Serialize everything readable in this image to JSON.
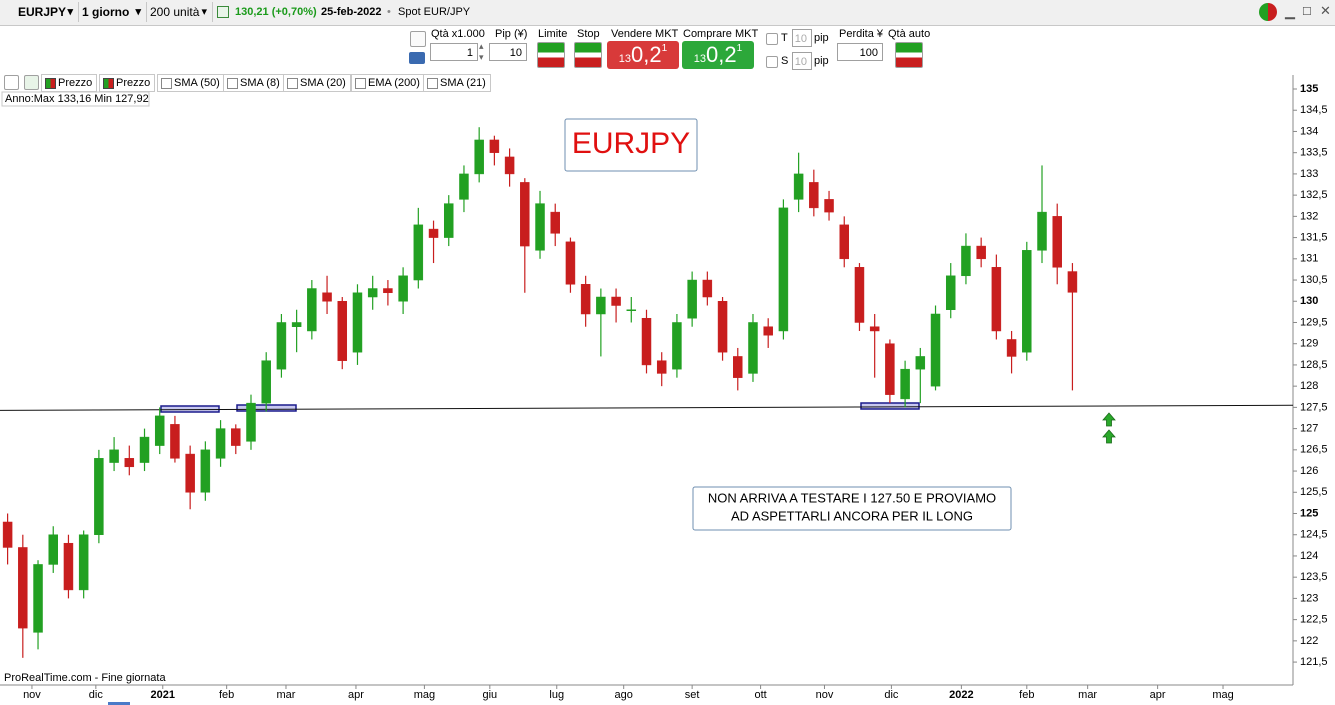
{
  "toolbar": {
    "instrument": "EURJPY",
    "timeframe": "1 giorno",
    "units": "200 unità",
    "change": "130,21 (+0,70%)",
    "date": "25-feb-2022",
    "market": "Spot EUR/JPY"
  },
  "order_bar": {
    "qty_label": "Qtà x1.000",
    "qty_value": "1",
    "pip_label": "Pip (¥)",
    "pip_value": "10",
    "limit": "Limite",
    "stop": "Stop",
    "sell_label": "Vendere MKT",
    "buy_label": "Comprare MKT",
    "sell_price": {
      "prefix": "13",
      "main": "0,2",
      "sup": "1"
    },
    "buy_price": {
      "prefix": "13",
      "main": "0,2",
      "sup": "1"
    },
    "t_label": "T",
    "t_value": "10",
    "t_unit": "pip",
    "s_label": "S",
    "s_value": "10",
    "s_unit": "pip",
    "loss_label": "Perdita ¥",
    "loss_value": "100",
    "auto_qty": "Qtà auto"
  },
  "indicators": [
    "Prezzo",
    "Prezzo",
    "SMA (50)",
    "SMA (8)",
    "SMA (20)",
    "EMA (200)",
    "SMA (21)"
  ],
  "year_range": "Anno:Max 133,16 Min 127,92",
  "footer": "ProRealTime.com - Fine giornata",
  "chart_data": {
    "type": "candlestick",
    "title": "EURJPY",
    "annotation": [
      "NON ARRIVA A TESTARE I 127.50 E PROVIAMO",
      "AD ASPETTARLI ANCORA PER IL LONG"
    ],
    "up_color": "#22a022",
    "down_color": "#c81e1e",
    "support_line": {
      "start": 127.43,
      "end": 127.55
    },
    "xlim": [
      -0.5,
      84.5
    ],
    "xticks": [
      {
        "value": 1.6,
        "label": "nov"
      },
      {
        "value": 5.8,
        "label": "dic"
      },
      {
        "value": 10.2,
        "label": "2021"
      },
      {
        "value": 14.4,
        "label": "feb"
      },
      {
        "value": 18.3,
        "label": "mar"
      },
      {
        "value": 22.9,
        "label": "apr"
      },
      {
        "value": 27.4,
        "label": "mag"
      },
      {
        "value": 31.7,
        "label": "giu"
      },
      {
        "value": 36.1,
        "label": "lug"
      },
      {
        "value": 40.5,
        "label": "ago"
      },
      {
        "value": 45.0,
        "label": "set"
      },
      {
        "value": 49.5,
        "label": "ott"
      },
      {
        "value": 53.7,
        "label": "nov"
      },
      {
        "value": 58.1,
        "label": "dic"
      },
      {
        "value": 62.7,
        "label": "2022"
      },
      {
        "value": 67.0,
        "label": "feb"
      },
      {
        "value": 71.0,
        "label": "mar"
      },
      {
        "value": 75.6,
        "label": "apr"
      },
      {
        "value": 79.9,
        "label": "mag"
      }
    ],
    "ylim": [
      120.96,
      135.33
    ],
    "yticks": [
      {
        "value": 121.5,
        "label": "121,5"
      },
      122,
      {
        "value": 122.5,
        "label": "122,5"
      },
      123,
      {
        "value": 123.5,
        "label": "123,5"
      },
      124,
      {
        "value": 124.5,
        "label": "124,5"
      },
      125,
      {
        "value": 125.5,
        "label": "125,5"
      },
      126,
      {
        "value": 126.5,
        "label": "126,5"
      },
      127,
      {
        "value": 127.5,
        "label": "127,5"
      },
      128,
      {
        "value": 128.5,
        "label": "128,5"
      },
      129,
      {
        "value": 129.5,
        "label": "129,5"
      },
      130,
      {
        "value": 130.5,
        "label": "130,5"
      },
      131,
      {
        "value": 131.5,
        "label": "131,5"
      },
      132,
      {
        "value": 132.5,
        "label": "132,5"
      },
      133,
      {
        "value": 133.5,
        "label": "133,5"
      },
      134,
      {
        "value": 134.5,
        "label": "134,5"
      },
      135
    ],
    "open": [
      124.8,
      124.2,
      122.2,
      123.8,
      124.3,
      123.2,
      124.5,
      126.2,
      126.3,
      126.2,
      126.6,
      127.1,
      126.4,
      125.5,
      126.3,
      127,
      126.7,
      127.6,
      128.4,
      129.4,
      129.3,
      130.2,
      130,
      128.8,
      130.1,
      130.3,
      130,
      130.5,
      131.7,
      131.5,
      132.4,
      133,
      133.8,
      133.4,
      132.8,
      131.2,
      132.1,
      131.4,
      130.4,
      129.7,
      130.1,
      129.8,
      129.6,
      128.6,
      128.4,
      129.6,
      130.5,
      130,
      128.7,
      128.3,
      129.4,
      129.3,
      132.4,
      132.8,
      132.4,
      131.8,
      130.8,
      129.4,
      129,
      127.7,
      128.4,
      128,
      129.8,
      130.6,
      131.3,
      130.8,
      129.1,
      128.8,
      131.2,
      132,
      130.7
    ],
    "high": [
      125,
      124.5,
      123.9,
      124.7,
      124.5,
      124.6,
      126.5,
      126.8,
      126.6,
      127,
      127.5,
      127.3,
      126.6,
      126.7,
      127.2,
      127.1,
      127.8,
      128.8,
      129.7,
      129.8,
      130.5,
      130.6,
      130.1,
      130.4,
      130.6,
      130.5,
      130.8,
      132.2,
      131.9,
      132.5,
      133.2,
      134.1,
      133.9,
      133.6,
      132.9,
      132.6,
      132.3,
      131.5,
      130.6,
      130.3,
      130.3,
      130.1,
      129.8,
      128.8,
      129.7,
      130.7,
      130.7,
      130.1,
      128.9,
      129.7,
      129.6,
      132.4,
      133.5,
      133.1,
      132.6,
      132,
      130.9,
      129.7,
      129.1,
      128.6,
      128.9,
      129.9,
      130.9,
      131.6,
      131.5,
      131.1,
      129.3,
      131.4,
      133.2,
      132.3,
      130.9
    ],
    "low": [
      123.8,
      121.6,
      121.8,
      123.6,
      123,
      123,
      124.3,
      126,
      125.9,
      126,
      126.4,
      126.2,
      125.1,
      125.3,
      126.1,
      126.4,
      126.5,
      127.4,
      128.2,
      128.8,
      129.1,
      129.7,
      128.4,
      128.5,
      129.8,
      129.9,
      129.7,
      130.3,
      130.9,
      131.3,
      132.1,
      132.8,
      133.2,
      132.7,
      130.2,
      131,
      131.3,
      130.2,
      129.4,
      128.7,
      129.5,
      129.5,
      128.3,
      128,
      128.2,
      129.4,
      129.9,
      128.6,
      127.9,
      128.1,
      128.9,
      129.1,
      132.1,
      132,
      131.9,
      130.8,
      129.3,
      128.2,
      127.6,
      127.5,
      127.6,
      127.9,
      129.6,
      130.4,
      130.8,
      129.1,
      128.3,
      128.6,
      130.9,
      130.4,
      127.9
    ],
    "close": [
      124.2,
      122.3,
      123.8,
      124.5,
      123.2,
      124.5,
      126.3,
      126.5,
      126.1,
      126.8,
      127.3,
      126.3,
      125.5,
      126.5,
      127,
      126.6,
      127.6,
      128.6,
      129.5,
      129.5,
      130.3,
      130,
      128.6,
      130.2,
      130.3,
      130.2,
      130.6,
      131.8,
      131.5,
      132.3,
      133,
      133.8,
      133.5,
      133,
      131.3,
      132.3,
      131.6,
      130.4,
      129.7,
      130.1,
      129.9,
      129.8,
      128.5,
      128.3,
      129.5,
      130.5,
      130.1,
      128.8,
      128.2,
      129.5,
      129.2,
      132.2,
      133,
      132.2,
      132.1,
      131,
      129.5,
      129.3,
      127.8,
      128.4,
      128.7,
      129.7,
      130.6,
      131.3,
      131,
      129.3,
      128.7,
      131.2,
      132.1,
      130.8,
      130.21
    ]
  }
}
